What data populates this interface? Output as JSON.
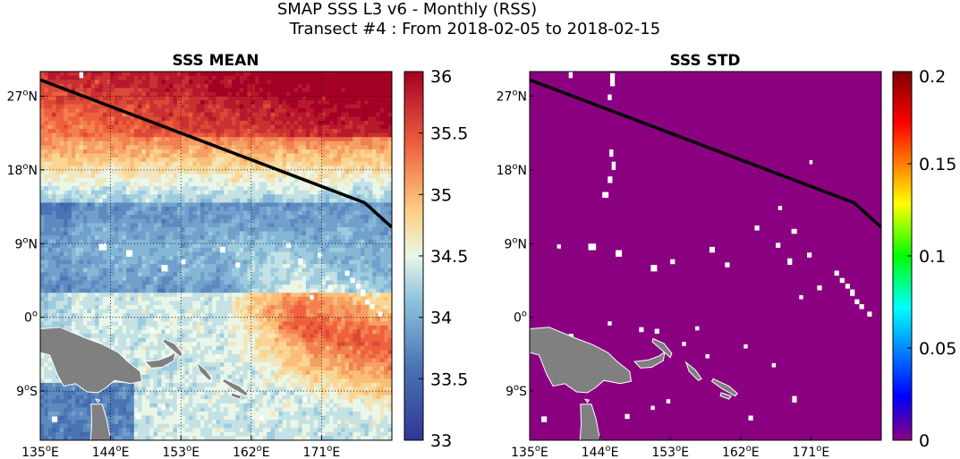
{
  "figure": {
    "title_line1": "SMAP SSS L3 v6 - Monthly (RSS)",
    "title_line2": "Transect #4 : From 2018-02-05 to 2018-02-15"
  },
  "colors": {
    "land": "#808080",
    "transect": "#000000",
    "missing": "#ffffff",
    "std_field": "#8b0080"
  },
  "chart_data": [
    {
      "type": "heatmap",
      "title": "SSS MEAN",
      "xlabel": "",
      "ylabel": "",
      "x_range_deg": [
        135,
        180
      ],
      "y_range_deg": [
        -15,
        30
      ],
      "x_ticks": [
        {
          "value": 135,
          "label": "135°E"
        },
        {
          "value": 144,
          "label": "144°E"
        },
        {
          "value": 153,
          "label": "153°E"
        },
        {
          "value": 162,
          "label": "162°E"
        },
        {
          "value": 171,
          "label": "171°E"
        }
      ],
      "y_ticks": [
        {
          "value": 27,
          "label": "27°N"
        },
        {
          "value": 18,
          "label": "18°N"
        },
        {
          "value": 9,
          "label": "9°N"
        },
        {
          "value": 0,
          "label": "0°"
        },
        {
          "value": -9,
          "label": "9°S"
        }
      ],
      "grid": true,
      "colorbar": {
        "min": 33,
        "max": 36,
        "ticks": [
          {
            "value": 36,
            "label": "36"
          },
          {
            "value": 35.5,
            "label": "35.5"
          },
          {
            "value": 35,
            "label": "35"
          },
          {
            "value": 34.5,
            "label": "34.5"
          },
          {
            "value": 34,
            "label": "34"
          },
          {
            "value": 33.5,
            "label": "33.5"
          },
          {
            "value": 33,
            "label": "33"
          }
        ],
        "colormap": "blue-white-red (RdYlBu reversed)"
      },
      "transect": [
        [
          135,
          29
        ],
        [
          176.5,
          14
        ],
        [
          180,
          11
        ]
      ]
    },
    {
      "type": "heatmap",
      "title": "SSS STD",
      "xlabel": "",
      "ylabel": "",
      "x_range_deg": [
        135,
        180
      ],
      "y_range_deg": [
        -15,
        30
      ],
      "x_ticks": [
        {
          "value": 135,
          "label": "135°E"
        },
        {
          "value": 144,
          "label": "144°E"
        },
        {
          "value": 153,
          "label": "153°E"
        },
        {
          "value": 162,
          "label": "162°E"
        },
        {
          "value": 171,
          "label": "171°E"
        }
      ],
      "y_ticks": [
        {
          "value": 27,
          "label": "27°N"
        },
        {
          "value": 18,
          "label": "18°N"
        },
        {
          "value": 9,
          "label": "9°N"
        },
        {
          "value": 0,
          "label": "0°"
        },
        {
          "value": -9,
          "label": "9°S"
        }
      ],
      "grid": false,
      "field_value": 0,
      "colorbar": {
        "min": 0,
        "max": 0.2,
        "ticks": [
          {
            "value": 0.2,
            "label": "0.2"
          },
          {
            "value": 0.15,
            "label": "0.15"
          },
          {
            "value": 0.1,
            "label": "0.1"
          },
          {
            "value": 0.05,
            "label": "0.05"
          },
          {
            "value": 0,
            "label": "0"
          }
        ],
        "colormap": "jet"
      },
      "transect": [
        [
          135,
          29
        ],
        [
          176.5,
          14
        ],
        [
          180,
          11
        ]
      ]
    }
  ]
}
